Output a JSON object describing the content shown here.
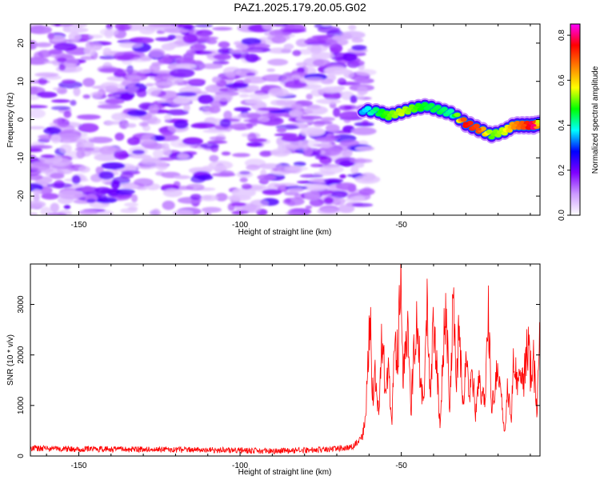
{
  "title": "PAZ1.2025.179.20.05.G02",
  "chart_data": [
    {
      "type": "heatmap",
      "title": "PAZ1.2025.179.20.05.G02",
      "xlabel": "Height of straight line (km)",
      "ylabel": "Frequency (Hz)",
      "xlim": [
        -165,
        -7
      ],
      "ylim": [
        -25,
        25
      ],
      "xticks": [
        -150,
        -100,
        -50
      ],
      "yticks": [
        -20,
        -10,
        0,
        10,
        20
      ],
      "colorbar": {
        "label": "Normalized spectral amplitude",
        "range": [
          0,
          0.85
        ],
        "ticks": [
          0.0,
          0.2,
          0.4,
          0.6,
          0.8
        ],
        "colors": [
          "#ffffff",
          "#cc99ff",
          "#7f00ff",
          "#0000ff",
          "#00ffff",
          "#00ff00",
          "#ffff00",
          "#ff8000",
          "#ff0000",
          "#ff00ff"
        ]
      },
      "noise_region": {
        "x": [
          -165,
          -62
        ],
        "typical_amplitude": [
          0.05,
          0.2
        ]
      },
      "signal_track": {
        "x": [
          -62,
          -57,
          -54,
          -50,
          -46,
          -42,
          -38,
          -34,
          -30,
          -26,
          -22,
          -18,
          -15,
          -12,
          -9,
          -7
        ],
        "freq_hz": [
          2.5,
          2,
          1,
          2,
          3,
          3.5,
          2.5,
          1.5,
          -1,
          -2.5,
          -4,
          -3,
          -1.5,
          -1.5,
          -1.5,
          -1
        ],
        "amplitude": [
          0.35,
          0.45,
          0.5,
          0.55,
          0.5,
          0.45,
          0.45,
          0.4,
          0.75,
          0.7,
          0.5,
          0.55,
          0.65,
          0.7,
          0.8,
          0.5
        ]
      }
    },
    {
      "type": "line",
      "xlabel": "Height of straight line (km)",
      "ylabel": "SNR (10 * v/v)",
      "xlim": [
        -165,
        -7
      ],
      "ylim": [
        0,
        3800
      ],
      "xticks": [
        -150,
        -100,
        -50
      ],
      "yticks": [
        0,
        1000,
        2000,
        3000
      ],
      "color": "#ff0000",
      "series": [
        {
          "x": [
            -165,
            -150,
            -130,
            -110,
            -90,
            -75,
            -65,
            -62,
            -61,
            -60,
            -59.5,
            -59,
            -58,
            -57,
            -56,
            -55,
            -54,
            -53,
            -52,
            -51,
            -50.5,
            -50,
            -49.5,
            -48,
            -47,
            -46,
            -45,
            -44,
            -43,
            -42,
            -41,
            -40,
            -39,
            -38,
            -37,
            -36,
            -35,
            -34,
            -33,
            -32,
            -31,
            -30,
            -29,
            -28,
            -27,
            -26,
            -25,
            -24,
            -23,
            -22,
            -21,
            -20,
            -19,
            -18,
            -17,
            -16,
            -15,
            -14,
            -13,
            -12,
            -11,
            -10,
            -9,
            -8,
            -7
          ],
          "values": [
            150,
            140,
            130,
            120,
            100,
            120,
            180,
            400,
            900,
            2300,
            2500,
            1200,
            1600,
            800,
            2600,
            1300,
            1900,
            600,
            2300,
            2100,
            3000,
            3800,
            1500,
            2300,
            900,
            2200,
            2600,
            1500,
            1000,
            3000,
            1200,
            2800,
            1800,
            600,
            2200,
            2800,
            700,
            3100,
            1500,
            2600,
            900,
            1800,
            1300,
            1700,
            800,
            1600,
            1100,
            1100,
            2900,
            900,
            1400,
            1700,
            1100,
            550,
            1400,
            700,
            2100,
            1300,
            1900,
            1500,
            2300,
            1700,
            1900,
            950,
            2400
          ]
        }
      ]
    }
  ]
}
